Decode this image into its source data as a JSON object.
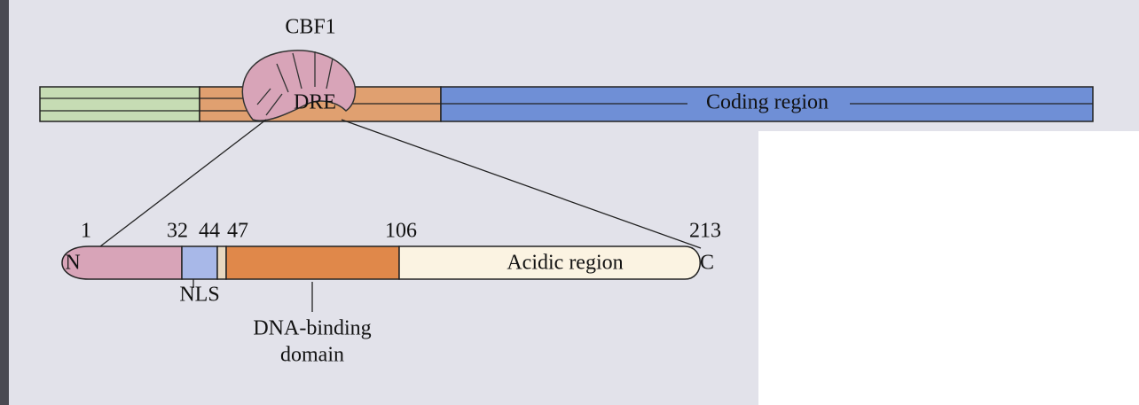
{
  "figure": {
    "protein": "CBF1",
    "promoter_element": "DRE",
    "coding_region": "Coding region",
    "positions": [
      1,
      32,
      44,
      47,
      106,
      213
    ],
    "n_terminus": "N",
    "c_terminus": "C",
    "acidic_region": "Acidic region",
    "nls": "NLS",
    "dna_binding": [
      "DNA-binding",
      "domain"
    ]
  }
}
